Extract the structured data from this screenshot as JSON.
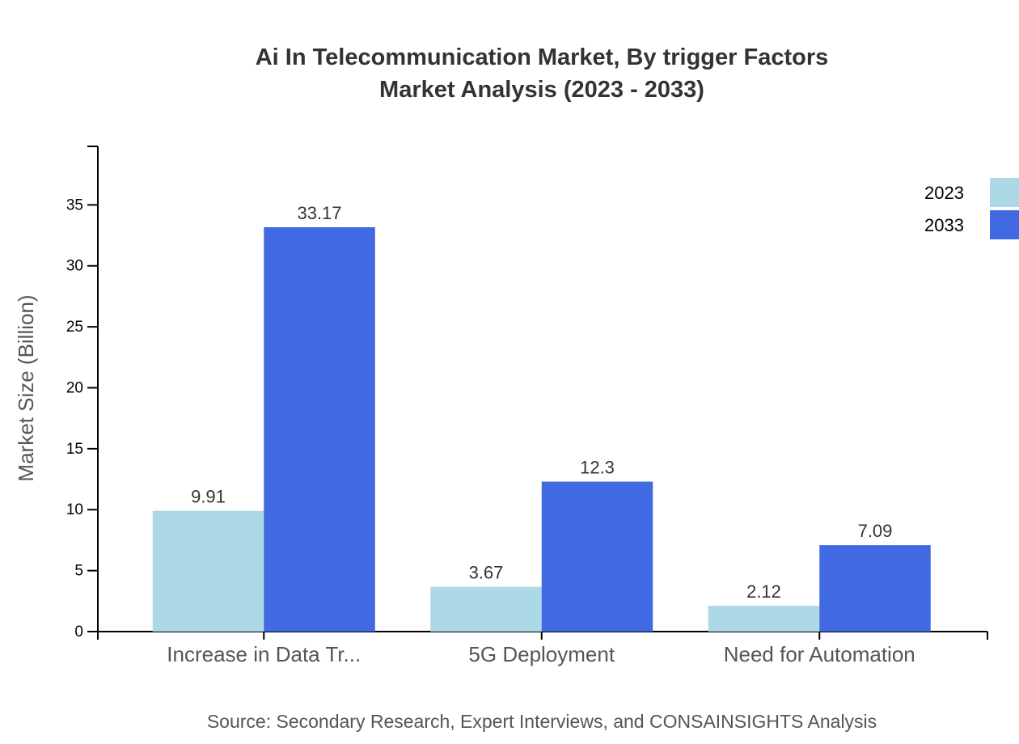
{
  "chart_data": {
    "type": "bar",
    "title": "Ai In Telecommunication Market, By trigger Factors",
    "subtitle": "Market Analysis (2023 - 2033)",
    "xlabel": "",
    "ylabel": "Market Size (Billion)",
    "ylim": [
      0,
      39.8
    ],
    "yticks": [
      0,
      5,
      10,
      15,
      20,
      25,
      30,
      35
    ],
    "categories": [
      "Increase in Data Tr...",
      "5G Deployment",
      "Need for Automation"
    ],
    "series": [
      {
        "name": "2023",
        "color": "#ADD8E6",
        "values": [
          9.91,
          3.67,
          2.12
        ]
      },
      {
        "name": "2033",
        "color": "#4169E1",
        "values": [
          33.17,
          12.3,
          7.09
        ]
      }
    ],
    "legend_position": "top-right",
    "grid": false,
    "source": "Source: Secondary Research, Expert Interviews, and CONSAINSIGHTS Analysis"
  }
}
